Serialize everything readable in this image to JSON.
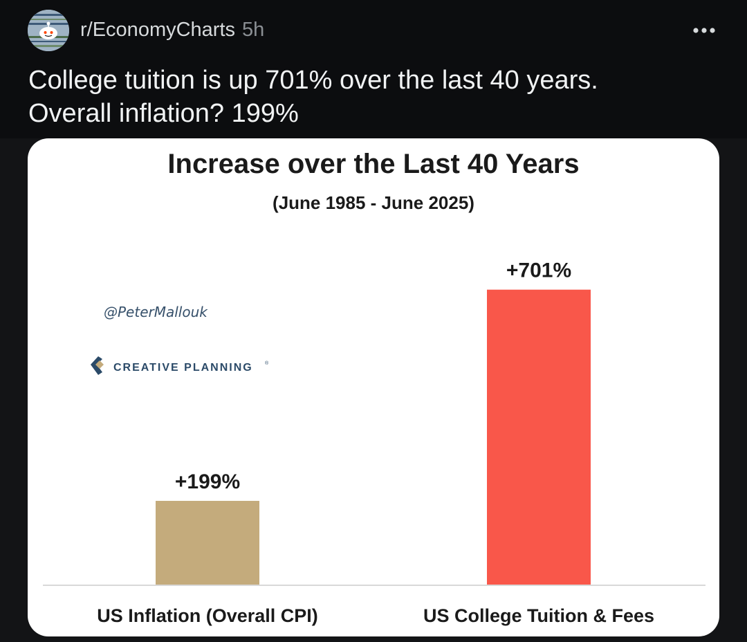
{
  "post": {
    "subreddit": "r/EconomyCharts",
    "age": "5h",
    "title_line1": "College tuition is up 701% over the last 40 years.",
    "title_line2": "Overall inflation? 199%",
    "more_icon": "more-dots-icon",
    "avatar_icon": "subreddit-avatar-icon"
  },
  "watermark": {
    "handle": "@PeterMallouk",
    "brand": "CREATIVE PLANNING",
    "brand_mark": "®"
  },
  "colors": {
    "background": "#131416",
    "card": "#ffffff",
    "bar_inflation": "#c4ab7c",
    "bar_tuition": "#f9574a",
    "brand_blue": "#2b4a68",
    "handle_blue": "#36506a"
  },
  "chart_data": {
    "type": "bar",
    "title": "Increase over the Last 40 Years",
    "subtitle": "(June 1985 - June 2025)",
    "categories": [
      "US Inflation (Overall CPI)",
      "US College Tuition & Fees"
    ],
    "values": [
      199,
      701
    ],
    "data_labels": [
      "+199%",
      "+701%"
    ],
    "bar_colors": [
      "#c4ab7c",
      "#f9574a"
    ],
    "ylim": [
      0,
      860
    ],
    "grid": false,
    "legend": "none"
  }
}
